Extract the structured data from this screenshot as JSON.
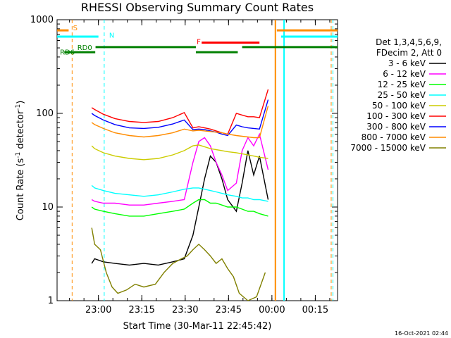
{
  "chart_data": {
    "type": "line",
    "title": "RHESSI Observing Summary Count Rates",
    "xlabel": "Start Time (30-Mar-11 22:45:42)",
    "ylabel_parts": [
      "Count Rate (s",
      "-1",
      " detector",
      "-1",
      ")"
    ],
    "y_scale": "log",
    "ylim": [
      1,
      1000
    ],
    "xlim_minutes_after_22_45_42": [
      0,
      97
    ],
    "x_ticks": [
      {
        "label": "23:00",
        "t": 14.3
      },
      {
        "label": "23:15",
        "t": 29.3
      },
      {
        "label": "23:30",
        "t": 44.3
      },
      {
        "label": "23:45",
        "t": 59.3
      },
      {
        "label": "00:00",
        "t": 74.3
      },
      {
        "label": "00:15",
        "t": 89.3
      }
    ],
    "y_ticks": [
      {
        "label": "1",
        "v": 1
      },
      {
        "label": "10",
        "v": 10
      },
      {
        "label": "100",
        "v": 100
      },
      {
        "label": "1000",
        "v": 1000
      }
    ],
    "legend_header": [
      "Det 1,3,4,5,6,9,",
      "FDecim 2, Att 0"
    ],
    "series": [
      {
        "name": "3 - 6 keV",
        "color": "#000000",
        "segments": [
          [
            [
              12,
              2.5
            ],
            [
              13,
              2.8
            ],
            [
              16,
              2.6
            ],
            [
              20,
              2.5
            ],
            [
              25,
              2.4
            ],
            [
              30,
              2.5
            ],
            [
              35,
              2.4
            ],
            [
              40,
              2.6
            ],
            [
              44,
              2.8
            ],
            [
              47,
              5
            ],
            [
              49,
              10
            ],
            [
              51,
              20
            ],
            [
              53,
              35
            ],
            [
              55,
              30
            ],
            [
              57,
              20
            ],
            [
              59,
              12
            ],
            [
              62,
              9
            ],
            [
              64,
              18
            ],
            [
              66,
              40
            ],
            [
              68,
              22
            ],
            [
              70,
              35
            ],
            [
              73,
              12
            ]
          ]
        ]
      },
      {
        "name": "6 - 12 keV",
        "color": "#ff00ff",
        "segments": [
          [
            [
              12,
              12
            ],
            [
              13,
              11.5
            ],
            [
              16,
              11
            ],
            [
              20,
              11
            ],
            [
              25,
              10.5
            ],
            [
              30,
              10.5
            ],
            [
              35,
              11
            ],
            [
              40,
              11.5
            ],
            [
              44,
              12
            ],
            [
              47,
              30
            ],
            [
              49,
              50
            ],
            [
              51,
              55
            ],
            [
              53,
              45
            ],
            [
              55,
              30
            ],
            [
              57,
              22
            ],
            [
              59,
              15
            ],
            [
              62,
              18
            ],
            [
              64,
              40
            ],
            [
              66,
              55
            ],
            [
              68,
              45
            ],
            [
              70,
              60
            ],
            [
              73,
              25
            ]
          ]
        ]
      },
      {
        "name": "12 - 25 keV",
        "color": "#00ff00",
        "segments": [
          [
            [
              12,
              10
            ],
            [
              13,
              9.5
            ],
            [
              16,
              9
            ],
            [
              20,
              8.5
            ],
            [
              25,
              8
            ],
            [
              30,
              8
            ],
            [
              35,
              8.5
            ],
            [
              40,
              9
            ],
            [
              44,
              9.5
            ],
            [
              47,
              11
            ],
            [
              49,
              12
            ],
            [
              51,
              12
            ],
            [
              53,
              11
            ],
            [
              55,
              11
            ],
            [
              57,
              10.5
            ],
            [
              59,
              10
            ],
            [
              62,
              10
            ],
            [
              64,
              9.5
            ],
            [
              66,
              9
            ],
            [
              68,
              9
            ],
            [
              70,
              8.5
            ],
            [
              73,
              8
            ]
          ]
        ]
      },
      {
        "name": "25 - 50 keV",
        "color": "#00ffff",
        "segments": [
          [
            [
              12,
              17
            ],
            [
              13,
              16
            ],
            [
              16,
              15
            ],
            [
              20,
              14
            ],
            [
              25,
              13.5
            ],
            [
              30,
              13
            ],
            [
              35,
              13.5
            ],
            [
              40,
              14.5
            ],
            [
              44,
              15.5
            ],
            [
              47,
              16
            ],
            [
              49,
              16
            ],
            [
              51,
              15.5
            ],
            [
              53,
              15
            ],
            [
              55,
              14.5
            ],
            [
              57,
              14
            ],
            [
              59,
              13.5
            ],
            [
              62,
              13
            ],
            [
              64,
              12.5
            ],
            [
              66,
              12.5
            ],
            [
              68,
              12
            ],
            [
              70,
              12
            ],
            [
              73,
              11.5
            ]
          ]
        ]
      },
      {
        "name": "50 - 100 keV",
        "color": "#cccc00",
        "segments": [
          [
            [
              12,
              45
            ],
            [
              13,
              42
            ],
            [
              16,
              38
            ],
            [
              20,
              35
            ],
            [
              25,
              33
            ],
            [
              30,
              32
            ],
            [
              35,
              33
            ],
            [
              40,
              36
            ],
            [
              44,
              40
            ],
            [
              47,
              45
            ],
            [
              49,
              46
            ],
            [
              51,
              44
            ],
            [
              53,
              42
            ],
            [
              55,
              41
            ],
            [
              57,
              40
            ],
            [
              59,
              39
            ],
            [
              62,
              38
            ],
            [
              64,
              37
            ],
            [
              66,
              36
            ],
            [
              68,
              35
            ],
            [
              70,
              34
            ],
            [
              73,
              33
            ]
          ]
        ]
      },
      {
        "name": "100 - 300 keV",
        "color": "#ff0000",
        "segments": [
          [
            [
              12,
              115
            ],
            [
              13,
              110
            ],
            [
              16,
              98
            ],
            [
              20,
              88
            ],
            [
              25,
              82
            ],
            [
              30,
              80
            ],
            [
              35,
              82
            ],
            [
              40,
              90
            ],
            [
              44,
              102
            ],
            [
              47,
              70
            ],
            [
              49,
              72
            ],
            [
              51,
              70
            ],
            [
              53,
              68
            ],
            [
              55,
              65
            ],
            [
              57,
              62
            ],
            [
              59,
              60
            ],
            [
              62,
              100
            ],
            [
              64,
              96
            ],
            [
              66,
              92
            ],
            [
              68,
              92
            ],
            [
              70,
              90
            ],
            [
              73,
              180
            ]
          ]
        ]
      },
      {
        "name": "300 - 800 keV",
        "color": "#0000ff",
        "segments": [
          [
            [
              12,
              100
            ],
            [
              13,
              95
            ],
            [
              16,
              85
            ],
            [
              20,
              76
            ],
            [
              25,
              70
            ],
            [
              30,
              69
            ],
            [
              35,
              71
            ],
            [
              40,
              77
            ],
            [
              44,
              85
            ],
            [
              47,
              67
            ],
            [
              49,
              68
            ],
            [
              51,
              67
            ],
            [
              53,
              65
            ],
            [
              55,
              63
            ],
            [
              57,
              60
            ],
            [
              59,
              58
            ],
            [
              62,
              75
            ],
            [
              64,
              72
            ],
            [
              66,
              70
            ],
            [
              68,
              69
            ],
            [
              70,
              68
            ],
            [
              73,
              140
            ]
          ]
        ]
      },
      {
        "name": "800 - 7000 keV",
        "color": "#ff8c00",
        "segments": [
          [
            [
              12,
              80
            ],
            [
              13,
              76
            ],
            [
              16,
              69
            ],
            [
              20,
              62
            ],
            [
              25,
              58
            ],
            [
              30,
              56
            ],
            [
              35,
              58
            ],
            [
              40,
              62
            ],
            [
              44,
              68
            ],
            [
              47,
              65
            ],
            [
              49,
              66
            ],
            [
              51,
              65
            ],
            [
              53,
              64
            ],
            [
              55,
              63
            ],
            [
              57,
              62
            ],
            [
              59,
              60
            ],
            [
              62,
              58
            ],
            [
              64,
              57
            ],
            [
              66,
              56
            ],
            [
              68,
              55
            ],
            [
              70,
              55
            ],
            [
              73,
              120
            ]
          ]
        ]
      },
      {
        "name": "7000 - 15000 keV",
        "color": "#808000",
        "segments": [
          [
            [
              12,
              6
            ],
            [
              13,
              4
            ],
            [
              15,
              3.5
            ],
            [
              17,
              2
            ],
            [
              19,
              1.4
            ],
            [
              21,
              1.2
            ],
            [
              24,
              1.3
            ],
            [
              27,
              1.5
            ],
            [
              30,
              1.4
            ],
            [
              34,
              1.5
            ],
            [
              37,
              2
            ],
            [
              40,
              2.5
            ],
            [
              43,
              2.8
            ],
            [
              45,
              3
            ],
            [
              47,
              3.5
            ],
            [
              49,
              4
            ],
            [
              51,
              3.5
            ],
            [
              53,
              3
            ],
            [
              55,
              2.5
            ],
            [
              57,
              2.8
            ],
            [
              59,
              2.2
            ],
            [
              61,
              1.8
            ],
            [
              63,
              1.2
            ],
            [
              66,
              1
            ],
            [
              69,
              1.1
            ],
            [
              72,
              2
            ]
          ]
        ]
      }
    ],
    "state_bars": [
      {
        "label": "S",
        "color": "#ff8c00",
        "level": 770,
        "spans": [
          [
            0,
            4
          ],
          [
            76,
            97
          ]
        ],
        "label_at": 5.5,
        "label_level": 830
      },
      {
        "label": "N",
        "color": "#00ffff",
        "level": 660,
        "spans": [
          [
            0,
            14.3
          ],
          [
            77.5,
            97
          ]
        ],
        "label_at": 18,
        "label_level": 690
      },
      {
        "label": "F",
        "color": "#ff0000",
        "level": 570,
        "spans": [
          [
            50,
            70
          ]
        ],
        "label_at": 48.3,
        "label_level": 590
      },
      {
        "label": "RD0",
        "color": "#008000",
        "level": 510,
        "spans": [
          [
            13.3,
            48
          ],
          [
            64,
            97
          ]
        ],
        "label_at": 7,
        "label_level": 510
      },
      {
        "label": "RD6",
        "color": "#008000",
        "level": 450,
        "spans": [
          [
            2.5,
            13.2
          ],
          [
            48,
            62.5
          ]
        ],
        "label_at": 1,
        "label_level": 455
      }
    ],
    "event_lines": [
      {
        "t": 5.2,
        "color": "#ff8c00",
        "dashed": true
      },
      {
        "t": 16.3,
        "color": "#00ffff",
        "dashed": true
      },
      {
        "t": 75.5,
        "color": "#ff8c00",
        "dashed": false
      },
      {
        "t": 78.5,
        "color": "#00ffff",
        "dashed": false
      },
      {
        "t": 94.8,
        "color": "#ff8c00",
        "dashed": true
      },
      {
        "t": 95.4,
        "color": "#00ffff",
        "dashed": true
      }
    ]
  },
  "footer": {
    "stamp": "16-Oct-2021 02:44"
  }
}
